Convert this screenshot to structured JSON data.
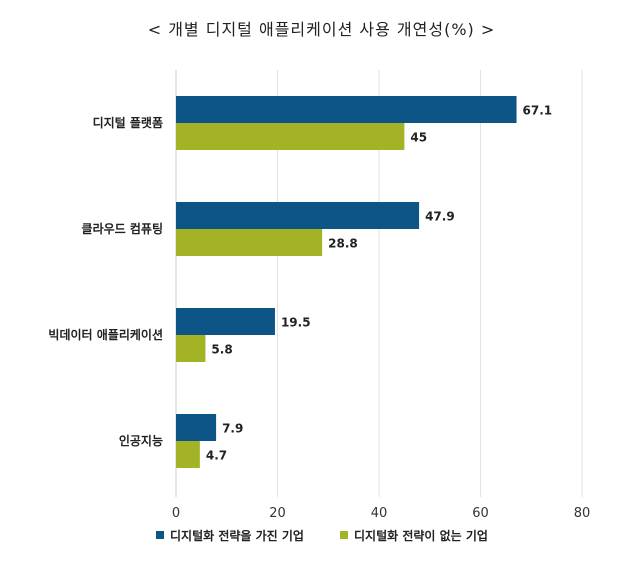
{
  "chart_data": {
    "type": "bar",
    "orientation": "horizontal",
    "title": "< 개별 디지털 애플리케이션 사용 개연성(%) >",
    "categories": [
      "디지털 플랫폼",
      "클라우드 컴퓨팅",
      "빅데이터 애플리케이션",
      "인공지능"
    ],
    "series": [
      {
        "name": "디지털화 전략을 가진 기업",
        "color": "#0d5587",
        "values": [
          67.1,
          47.9,
          19.5,
          7.9
        ],
        "labels": [
          "67.1",
          "47.9",
          "19.5",
          "7.9"
        ]
      },
      {
        "name": "디지털화 전략이 없는 기업",
        "color": "#a3b325",
        "values": [
          45,
          28.8,
          5.8,
          4.7
        ],
        "labels": [
          "45",
          "28.8",
          "5.8",
          "4.7"
        ]
      }
    ],
    "xlim": [
      0,
      80
    ],
    "xticks": [
      "0",
      "20",
      "40",
      "60",
      "80"
    ],
    "xlabel": "",
    "ylabel": "",
    "grid": "vertical",
    "legend_position": "bottom"
  }
}
